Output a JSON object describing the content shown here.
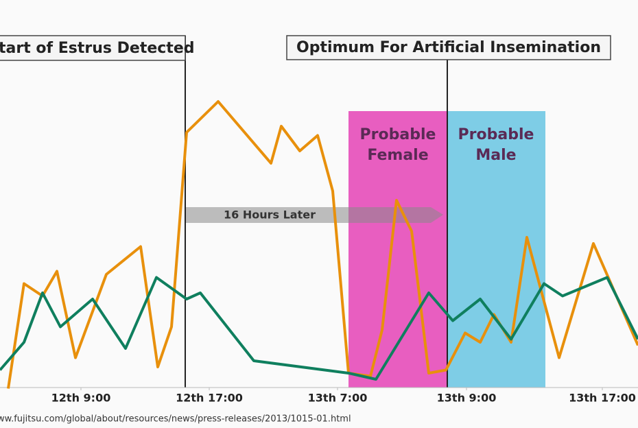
{
  "chart_data": {
    "type": "line",
    "xlim": [
      0,
      930
    ],
    "ylim": [
      0,
      100
    ],
    "xticks": [
      {
        "value": 118,
        "label": "12th 9:00"
      },
      {
        "value": 305,
        "label": "12th 17:00"
      },
      {
        "value": 492,
        "label": "13th 7:00"
      },
      {
        "value": 680,
        "label": "13th 9:00"
      },
      {
        "value": 878,
        "label": "13th 17:00"
      }
    ],
    "series": [
      {
        "color": "#e8900c",
        "x": [
          12,
          35,
          62,
          83,
          110,
          155,
          205,
          230,
          250,
          272,
          318,
          395,
          410,
          437,
          463,
          485,
          508,
          540,
          557,
          578,
          600,
          625,
          650,
          678,
          700,
          720,
          745,
          768,
          815,
          865,
          930
        ],
        "values": [
          3,
          37,
          33,
          41,
          13,
          40,
          49,
          10,
          23,
          86,
          96,
          76,
          88,
          80,
          85,
          67,
          8,
          7,
          22,
          64,
          54,
          8,
          9,
          21,
          18,
          27,
          18,
          52,
          13,
          50,
          17
        ]
      },
      {
        "color": "#0f7f5e",
        "x": [
          0,
          35,
          62,
          88,
          135,
          183,
          228,
          272,
          292,
          370,
          508,
          548,
          625,
          660,
          700,
          745,
          793,
          820,
          885,
          930
        ],
        "values": [
          9,
          18,
          34,
          23,
          32,
          16,
          39,
          32,
          34,
          12,
          8,
          6,
          34,
          25,
          32,
          19,
          37,
          33,
          39,
          19
        ]
      }
    ]
  },
  "annotations": {
    "estrus": "tart of Estrus Detected",
    "optimum": "Optimum For Artificial Insemination",
    "arrow": "16 Hours Later",
    "female": [
      "Probable",
      "Female"
    ],
    "male": [
      "Probable",
      "Male"
    ]
  },
  "source": "ww.fujitsu.com/global/about/resources/news/press-releases/2013/1015-01.html"
}
